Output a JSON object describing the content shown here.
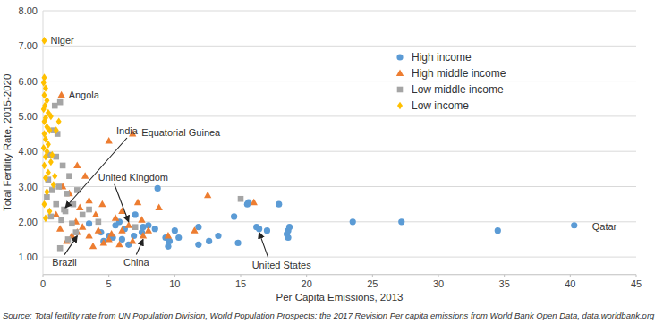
{
  "chart_data": {
    "type": "scatter",
    "x_label": "Per Capita Emissions, 2013",
    "y_label": "Total Fertility Rate, 2015-2020",
    "source": "Source: Total fertility rate from UN Population Division, World Population Prospects: the 2017 Revision Per capita emissions from World Bank Open Data, data.worldbank.org",
    "xlim": [
      0,
      45
    ],
    "xticks": [
      0,
      5,
      10,
      15,
      20,
      25,
      30,
      35,
      40,
      45
    ],
    "ylim": [
      0.5,
      8
    ],
    "yticks": [
      {
        "value": 1,
        "label": "1.00"
      },
      {
        "value": 2,
        "label": "2.00"
      },
      {
        "value": 3,
        "label": "3.00"
      },
      {
        "value": 4,
        "label": "4.00"
      },
      {
        "value": 5,
        "label": "5.00"
      },
      {
        "value": 6,
        "label": "6.00"
      },
      {
        "value": 7,
        "label": "7.00"
      },
      {
        "value": 8,
        "label": "8.00"
      }
    ],
    "grid": true,
    "legend": "upper right",
    "series": [
      {
        "name": "High income",
        "color": "#5b9bd5",
        "marker": "circle",
        "x": [
          8.7,
          7.0,
          5.5,
          5.0,
          4.6,
          6.0,
          6.5,
          5.8,
          7.5,
          8.0,
          9.3,
          9.5,
          10.0,
          11.8,
          11.8,
          12.6,
          13.3,
          14.5,
          14.8,
          15.5,
          15.6,
          16.2,
          16.4,
          17.0,
          17.9,
          18.5,
          18.6,
          18.7,
          18.6,
          23.5,
          27.2,
          34.5,
          40.3,
          6.2,
          6.9,
          8.5,
          4.4,
          9.6,
          5.3,
          7.6,
          3.5,
          10.3
        ],
        "values": [
          2.95,
          2.2,
          1.9,
          1.6,
          1.45,
          1.5,
          1.35,
          2.0,
          1.7,
          1.9,
          1.55,
          1.3,
          1.75,
          1.85,
          1.35,
          1.45,
          1.6,
          2.15,
          1.4,
          2.5,
          2.55,
          1.85,
          1.8,
          1.75,
          2.5,
          1.65,
          1.75,
          1.85,
          1.55,
          2.0,
          2.0,
          1.75,
          1.9,
          1.8,
          1.6,
          1.8,
          1.7,
          1.45,
          1.55,
          1.85,
          1.95,
          1.55
        ]
      },
      {
        "name": "High middle income",
        "color": "#ed7d31",
        "marker": "triangle",
        "x": [
          1.4,
          6.8,
          5.0,
          2.6,
          3.2,
          1.5,
          2.0,
          3.5,
          12.5,
          4.5,
          2.8,
          6.0,
          8.8,
          4.0,
          2.5,
          5.5,
          7.5,
          1.0,
          3.0,
          4.2,
          6.5,
          2.2,
          2.6,
          3.5,
          5.0,
          7.6,
          6.8,
          5.8,
          4.6,
          8.0,
          3.8,
          9.5,
          7.2,
          1.8,
          11.5,
          16.0,
          1.3,
          6.0,
          5.2
        ],
        "values": [
          5.6,
          4.5,
          4.3,
          3.6,
          3.3,
          3.0,
          2.8,
          2.6,
          2.75,
          2.5,
          2.4,
          2.3,
          2.4,
          2.2,
          2.0,
          2.1,
          2.05,
          2.2,
          1.85,
          1.75,
          1.9,
          1.6,
          1.7,
          1.6,
          1.5,
          1.6,
          1.45,
          1.35,
          1.4,
          1.75,
          1.3,
          1.6,
          2.55,
          1.45,
          1.75,
          2.55,
          1.8,
          1.75,
          1.65
        ]
      },
      {
        "name": "Low middle income",
        "color": "#a5a5a5",
        "marker": "square",
        "x": [
          1.3,
          0.9,
          1.1,
          0.8,
          0.5,
          1.0,
          1.5,
          2.0,
          1.2,
          0.7,
          1.8,
          2.6,
          1.0,
          1.6,
          1.7,
          0.6,
          1.4,
          2.2,
          3.0,
          1.3,
          2.5,
          3.5,
          4.2,
          0.3,
          1.9,
          15.0,
          7.0,
          0.4,
          2.3
        ],
        "values": [
          5.4,
          5.3,
          4.5,
          4.6,
          3.9,
          3.85,
          3.6,
          3.3,
          3.0,
          2.9,
          2.8,
          2.9,
          2.5,
          2.35,
          2.3,
          2.15,
          2.05,
          1.95,
          2.2,
          1.25,
          1.7,
          2.35,
          2.0,
          2.7,
          1.5,
          2.65,
          1.85,
          3.2,
          2.5
        ]
      },
      {
        "name": "Low income",
        "color": "#ffc000",
        "marker": "diamond",
        "x": [
          0.1,
          0.1,
          0.05,
          0.2,
          0.1,
          0.3,
          0.15,
          0.05,
          0.4,
          0.2,
          0.1,
          0.3,
          0.5,
          0.1,
          0.2,
          0.4,
          0.05,
          0.3,
          0.2,
          0.6,
          0.1,
          0.4,
          0.2,
          0.8,
          0.3,
          0.1,
          0.5,
          1.2,
          1.0,
          0.6,
          0.7,
          0.9,
          0.2
        ],
        "values": [
          7.15,
          6.1,
          5.95,
          5.8,
          5.6,
          5.45,
          5.3,
          5.2,
          5.1,
          4.95,
          4.85,
          4.7,
          4.6,
          4.5,
          4.35,
          4.2,
          4.1,
          4.0,
          3.85,
          3.7,
          3.6,
          3.4,
          3.25,
          3.05,
          2.85,
          2.5,
          2.3,
          4.85,
          4.6,
          5.0,
          3.9,
          3.3,
          2.1
        ]
      }
    ],
    "annotations": [
      {
        "text": "Niger",
        "x": 0.1,
        "y": 7.15
      },
      {
        "text": "Angola",
        "x": 1.4,
        "y": 5.6
      },
      {
        "text": "Equatorial Guinea",
        "x": 6.8,
        "y": 4.5
      },
      {
        "text": "India",
        "x": 1.7,
        "y": 2.3
      },
      {
        "text": "United Kingdom",
        "x": 6.5,
        "y": 1.9
      },
      {
        "text": "Brazil",
        "x": 2.6,
        "y": 1.7
      },
      {
        "text": "China",
        "x": 7.6,
        "y": 1.6
      },
      {
        "text": "United States",
        "x": 16.4,
        "y": 1.8
      },
      {
        "text": "Qatar",
        "x": 40.3,
        "y": 1.9
      }
    ]
  }
}
